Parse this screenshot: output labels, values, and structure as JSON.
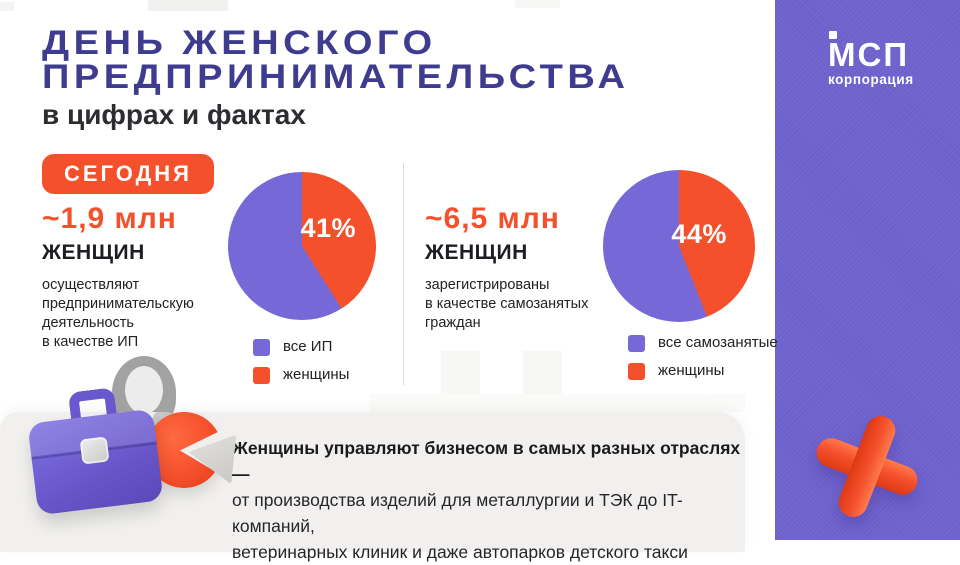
{
  "header": {
    "title_line1": "ДЕНЬ ЖЕНСКОГО",
    "title_line2": "ПРЕДПРИНИМАТЕЛЬСТВА",
    "subtitle": "в цифрах и фактах",
    "badge": "СЕГОДНЯ"
  },
  "logo": {
    "brand": "МСП",
    "sub": "корпорация"
  },
  "colors": {
    "orange": "#F4502C",
    "purple": "#7668D6",
    "panel_purple": "#6F62CE",
    "title_indigo": "#3F3C8F",
    "card_bg": "#F1F0EE"
  },
  "stats": [
    {
      "value": "~1,9 млн",
      "unit": "ЖЕНЩИН",
      "description": "осуществляют\nпредпринимательскую\nдеятельность\nв качестве ИП"
    },
    {
      "value": "~6,5 млн",
      "unit": "ЖЕНЩИН",
      "description": "зарегистрированы\nв качестве самозанятых\nграждан"
    }
  ],
  "chart_data": [
    {
      "type": "pie",
      "label_shown": "41%",
      "slices": [
        {
          "label": "женщины",
          "value": 41,
          "color": "#F4502C"
        },
        {
          "label": "все ИП",
          "value": 59,
          "color": "#7668D6"
        }
      ],
      "legend": [
        {
          "label": "все ИП",
          "color": "#7668D6"
        },
        {
          "label": "женщины",
          "color": "#F4502C"
        }
      ],
      "legend_position": "below"
    },
    {
      "type": "pie",
      "label_shown": "44%",
      "slices": [
        {
          "label": "женщины",
          "value": 44,
          "color": "#F4502C"
        },
        {
          "label": "все самозанятые",
          "value": 56,
          "color": "#7668D6"
        }
      ],
      "legend": [
        {
          "label": "все самозанятые",
          "color": "#7668D6"
        },
        {
          "label": "женщины",
          "color": "#F4502C"
        }
      ],
      "legend_position": "below"
    }
  ],
  "card": {
    "heading": "Женщины управляют бизнесом в самых разных отраслях —",
    "body": "от производства изделий для металлургии и ТЭК до IT-компаний,\nветеринарных клиник и даже автопарков детского такси"
  }
}
